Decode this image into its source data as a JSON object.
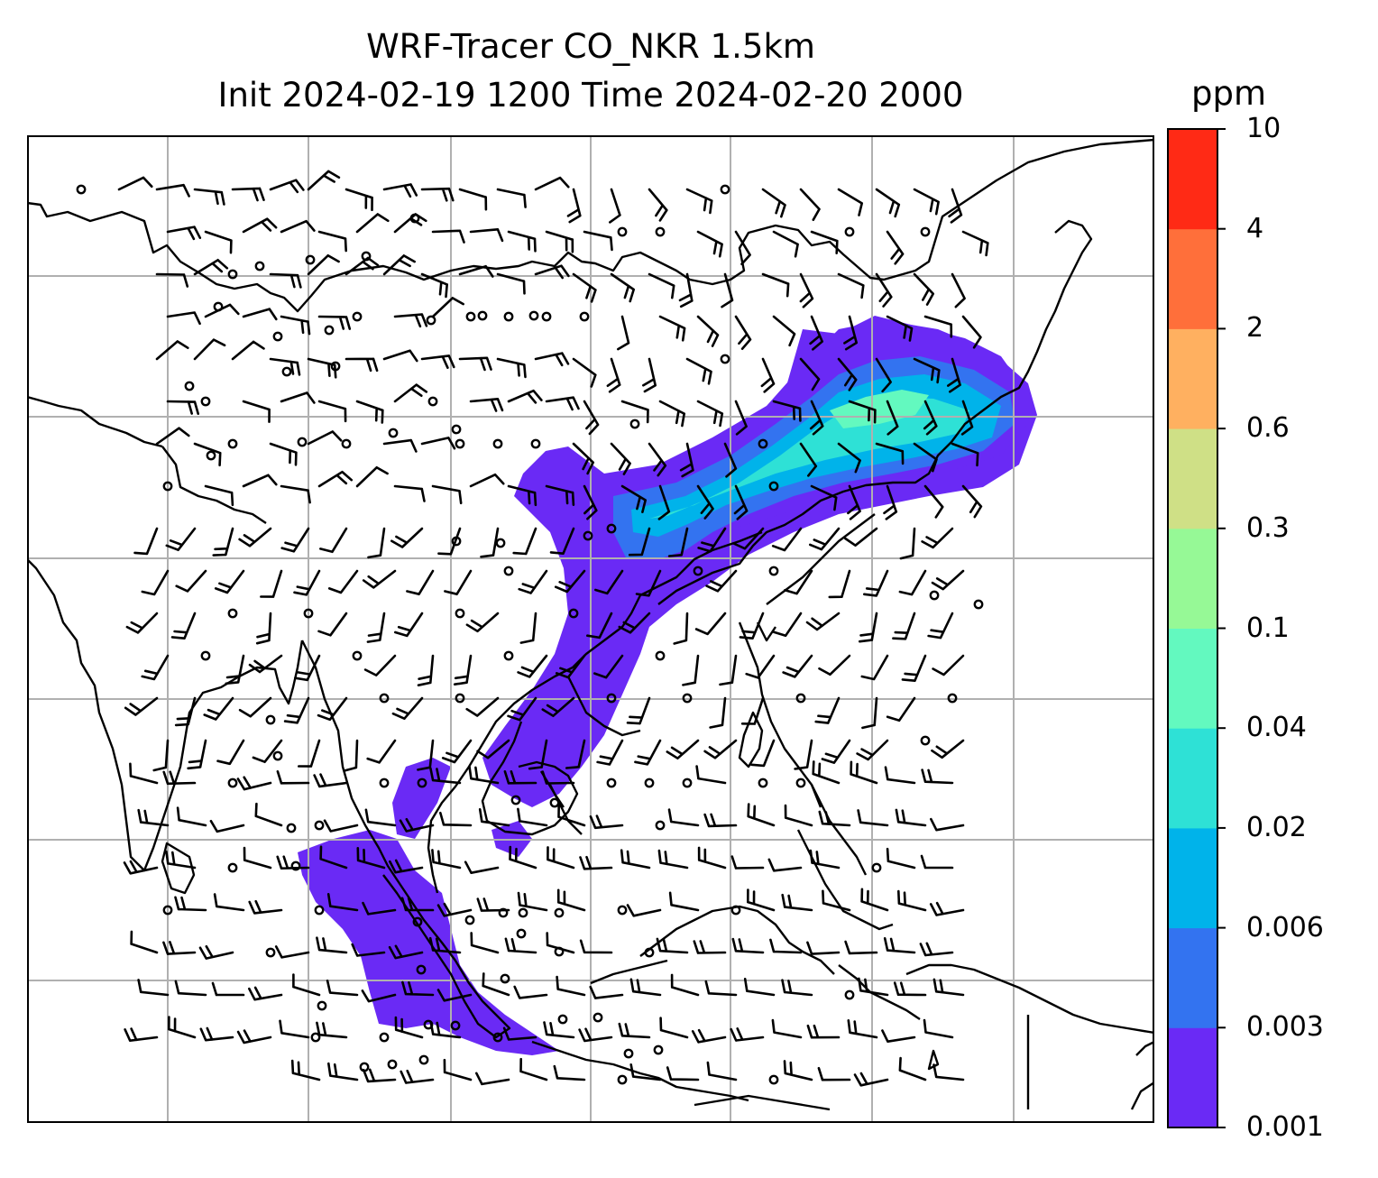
{
  "title": {
    "line1": "WRF-Tracer CO_NKR 1.5km",
    "line2": "Init 2024-02-19 1200 Time 2024-02-20 2000"
  },
  "colorbar": {
    "unit": "ppm",
    "levels": [
      "0.001",
      "0.003",
      "0.006",
      "0.02",
      "0.04",
      "0.1",
      "0.3",
      "0.6",
      "2",
      "4",
      "10"
    ],
    "colors": [
      "#6a2af5",
      "#3373f0",
      "#00b3ea",
      "#2ee1d6",
      "#63f9bf",
      "#96f996",
      "#cfe086",
      "#ffb060",
      "#ff6f3a",
      "#ff2a15"
    ]
  },
  "map": {
    "grid": true,
    "gridline_color": "#b0b0b0",
    "coastline_color": "#000000",
    "field": "CO_NKR tracer concentration",
    "overlay": "wind barbs"
  }
}
